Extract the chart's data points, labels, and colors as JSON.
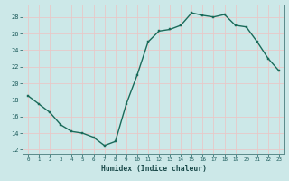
{
  "x": [
    0,
    1,
    2,
    3,
    4,
    5,
    6,
    7,
    8,
    9,
    10,
    11,
    12,
    13,
    14,
    15,
    16,
    17,
    18,
    19,
    20,
    21,
    22,
    23
  ],
  "y": [
    18.5,
    17.5,
    16.5,
    15.0,
    14.2,
    14.0,
    13.5,
    12.5,
    13.0,
    17.5,
    21.0,
    25.0,
    26.3,
    26.5,
    27.0,
    28.5,
    28.2,
    28.0,
    28.3,
    27.0,
    26.8,
    25.0,
    23.0,
    21.5
  ],
  "xlim": [
    -0.5,
    23.5
  ],
  "ylim": [
    11.5,
    29.5
  ],
  "yticks": [
    12,
    14,
    16,
    18,
    20,
    22,
    24,
    26,
    28
  ],
  "xticks": [
    0,
    1,
    2,
    3,
    4,
    5,
    6,
    7,
    8,
    9,
    10,
    11,
    12,
    13,
    14,
    15,
    16,
    17,
    18,
    19,
    20,
    21,
    22,
    23
  ],
  "xlabel": "Humidex (Indice chaleur)",
  "line_color": "#1a6b5a",
  "marker_color": "#1a6b5a",
  "bg_color": "#cce8e8",
  "grid_color": "#e8c8c8",
  "axis_color": "#5a8a8a",
  "tick_label_color": "#1a5a5a",
  "xlabel_color": "#1a4a4a",
  "marker": "s",
  "marker_size": 2.0,
  "line_width": 1.0
}
